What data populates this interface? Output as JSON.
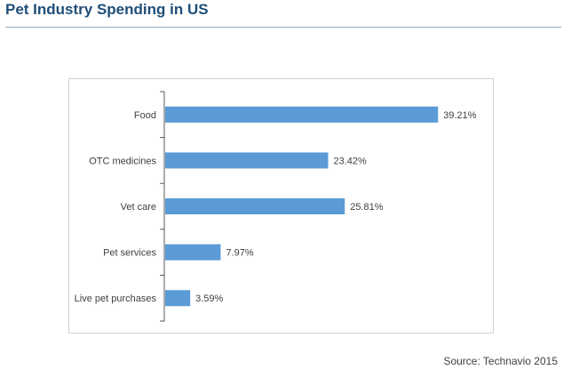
{
  "header": {
    "title": "Pet Industry Spending in US"
  },
  "footer": {
    "source": "Source: Technavio 2015"
  },
  "colors": {
    "bar": "#5b9bd5",
    "title": "#1f4e79",
    "axis": "#595959",
    "text": "#404040"
  },
  "chart_data": {
    "type": "bar",
    "orientation": "horizontal",
    "title": "Pet Industry Spending in US",
    "xlabel": "",
    "ylabel": "",
    "xlim": [
      0,
      40
    ],
    "grid": false,
    "legend": "none",
    "categories": [
      "Food",
      "OTC medicines",
      "Vet care",
      "Pet services",
      "Live pet purchases"
    ],
    "values": [
      39.21,
      23.42,
      25.81,
      7.97,
      3.59
    ],
    "value_labels": [
      "39.21%",
      "23.42%",
      "25.81%",
      "7.97%",
      "3.59%"
    ]
  }
}
